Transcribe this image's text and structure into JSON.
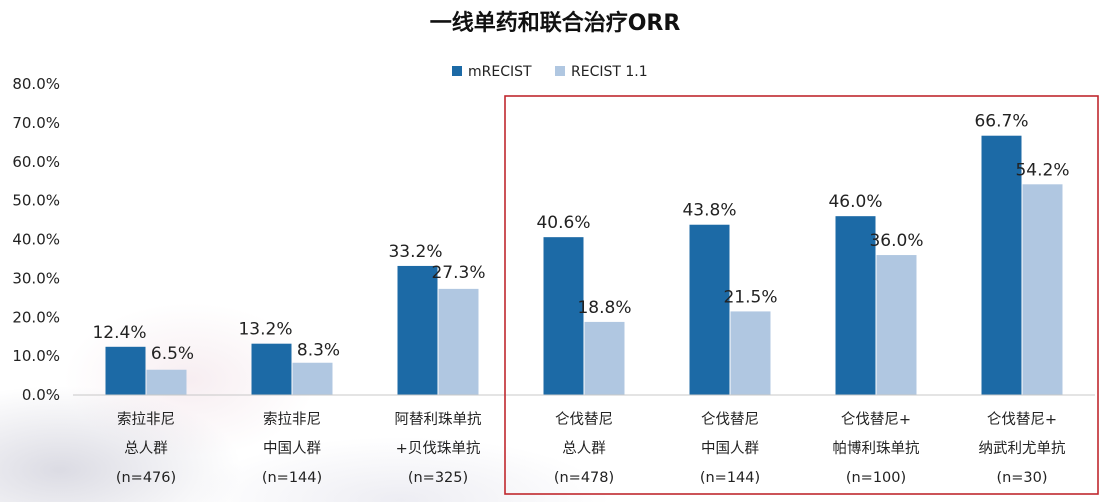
{
  "chart_data": {
    "type": "bar",
    "title": "一线单药和联合治疗ORR",
    "categories": [
      [
        "索拉非尼",
        "总人群",
        "(n=476)"
      ],
      [
        "索拉非尼",
        "中国人群",
        "(n=144)"
      ],
      [
        "阿替利珠单抗",
        "+贝伐珠单抗",
        "(n=325)"
      ],
      [
        "仑伐替尼",
        "总人群",
        "(n=478)"
      ],
      [
        "仑伐替尼",
        "中国人群",
        "(n=144)"
      ],
      [
        "仑伐替尼+",
        "帕博利珠单抗",
        "(n=100)"
      ],
      [
        "仑伐替尼+",
        "纳武利尤单抗",
        "(n=30)"
      ]
    ],
    "series": [
      {
        "name": "mRECIST",
        "color": "#1C6AA6",
        "values": [
          12.4,
          13.2,
          33.2,
          40.6,
          43.8,
          46.0,
          66.7
        ],
        "labels": [
          "12.4%",
          "13.2%",
          "33.2%",
          "40.6%",
          "43.8%",
          "46.0%",
          "66.7%"
        ]
      },
      {
        "name": "RECIST 1.1",
        "color": "#B0C7E1",
        "values": [
          6.5,
          8.3,
          27.3,
          18.8,
          21.5,
          36.0,
          54.2
        ],
        "labels": [
          "6.5%",
          "8.3%",
          "27.3%",
          "18.8%",
          "21.5%",
          "36.0%",
          "54.2%"
        ]
      }
    ],
    "yticks": [
      "0.0%",
      "10.0%",
      "20.0%",
      "30.0%",
      "40.0%",
      "50.0%",
      "60.0%",
      "70.0%",
      "80.0%"
    ],
    "ylim": [
      0,
      80
    ],
    "grid": false,
    "legend_position": "top-center",
    "highlight": {
      "from_category": 3,
      "to_category": 6,
      "color": "#C0282E"
    }
  }
}
